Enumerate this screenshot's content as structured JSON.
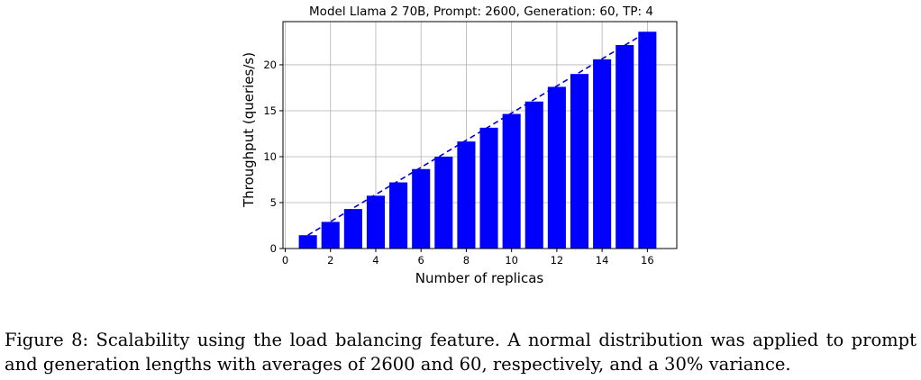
{
  "chart_data": {
    "type": "bar",
    "title": "Model Llama 2 70B, Prompt: 2600, Generation: 60, TP: 4",
    "xlabel": "Number of replicas",
    "ylabel": "Throughput (queries/s)",
    "x": [
      1,
      2,
      3,
      4,
      5,
      6,
      7,
      8,
      9,
      10,
      11,
      12,
      13,
      14,
      15,
      16
    ],
    "values": [
      1.45,
      2.9,
      4.3,
      5.75,
      7.2,
      8.65,
      10.0,
      11.65,
      13.15,
      14.65,
      16.0,
      17.6,
      19.0,
      20.6,
      22.15,
      23.6
    ],
    "xlim": [
      -0.1,
      17.3
    ],
    "ylim": [
      0,
      24.7
    ],
    "xticks": [
      0,
      2,
      4,
      6,
      8,
      10,
      12,
      14,
      16
    ],
    "yticks": [
      0,
      5,
      10,
      15,
      20
    ],
    "grid": true,
    "bar_color": "#0000ff",
    "reference_line": {
      "style": "dashed",
      "color": "#0000cc",
      "x": [
        1,
        16
      ],
      "y": [
        1.45,
        23.6
      ]
    }
  },
  "caption": "Figure 8: Scalability using the load balancing feature. A normal distribution was applied to prompt and generation lengths with averages of 2600 and 60, respectively, and a 30% variance."
}
